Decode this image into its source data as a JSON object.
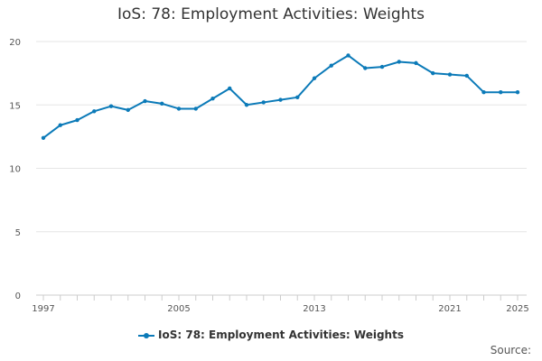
{
  "chart_data": {
    "type": "line",
    "title": "IoS: 78: Employment Activities: Weights",
    "xlabel": "",
    "ylabel": "",
    "x": [
      1997,
      1998,
      1999,
      2000,
      2001,
      2002,
      2003,
      2004,
      2005,
      2006,
      2007,
      2008,
      2009,
      2010,
      2011,
      2012,
      2013,
      2014,
      2015,
      2016,
      2017,
      2018,
      2019,
      2020,
      2021,
      2022,
      2023,
      2024,
      2025
    ],
    "x_tick_labels": [
      "1997",
      "2005",
      "2013",
      "2021",
      "2025"
    ],
    "xlim": [
      1997,
      2025
    ],
    "ylim": [
      0,
      20
    ],
    "y_ticks": [
      0,
      5,
      10,
      15,
      20
    ],
    "grid": true,
    "legend_position": "bottom",
    "series": [
      {
        "name": "IoS: 78: Employment Activities: Weights",
        "color": "#0b7ab8",
        "values": [
          12.4,
          13.4,
          13.8,
          14.5,
          14.9,
          14.6,
          15.3,
          15.1,
          14.7,
          14.7,
          15.5,
          16.3,
          15.0,
          15.2,
          15.4,
          15.6,
          17.1,
          18.1,
          18.9,
          17.9,
          18.0,
          18.4,
          18.3,
          17.5,
          17.4,
          17.3,
          16.0,
          16.0,
          16.0
        ]
      }
    ]
  },
  "source_label": "Source:"
}
